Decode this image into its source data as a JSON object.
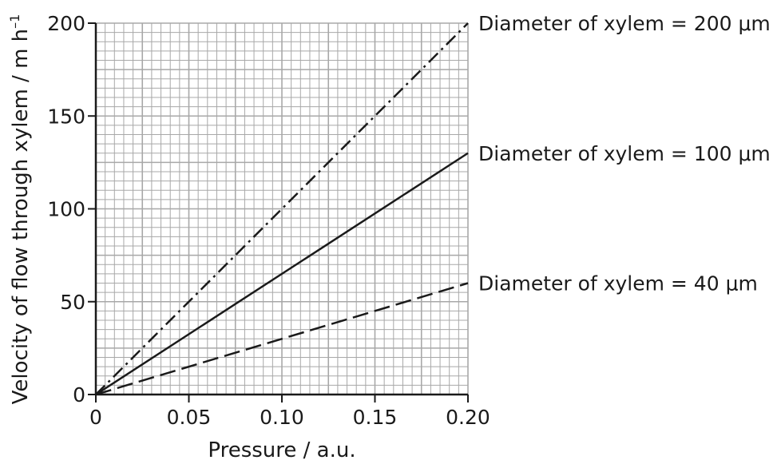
{
  "chart_data": {
    "type": "line",
    "title": "",
    "xlabel": "Pressure / a.u.",
    "ylabel": "Velocity of flow through xylem / m h",
    "ylabel_superscript": "–1",
    "xlim": [
      0,
      0.2
    ],
    "ylim": [
      0,
      200
    ],
    "x_ticks": [
      "0",
      "0.05",
      "0.10",
      "0.15",
      "0.20"
    ],
    "y_ticks": [
      "0",
      "50",
      "100",
      "150",
      "200"
    ],
    "x_tick_values": [
      0,
      0.05,
      0.1,
      0.15,
      0.2
    ],
    "y_tick_values": [
      0,
      50,
      100,
      150,
      200
    ],
    "grid": true,
    "grid_minor_step_x": 0.005,
    "grid_minor_step_y": 5,
    "legend_placement": "right, beside line ends",
    "series": [
      {
        "name": "Diameter of xylem = 200 μm",
        "style": "dash-dot",
        "x": [
          0,
          0.2
        ],
        "y": [
          0,
          200
        ]
      },
      {
        "name": "Diameter of xylem = 100 μm",
        "style": "solid",
        "x": [
          0,
          0.2
        ],
        "y": [
          0,
          130
        ]
      },
      {
        "name": "Diameter of xylem = 40 μm",
        "style": "dashed",
        "x": [
          0,
          0.2
        ],
        "y": [
          0,
          60
        ]
      }
    ],
    "colors": {
      "grid": "#a8a8a8",
      "axis": "#1a1a1a",
      "line": "#1a1a1a"
    }
  }
}
